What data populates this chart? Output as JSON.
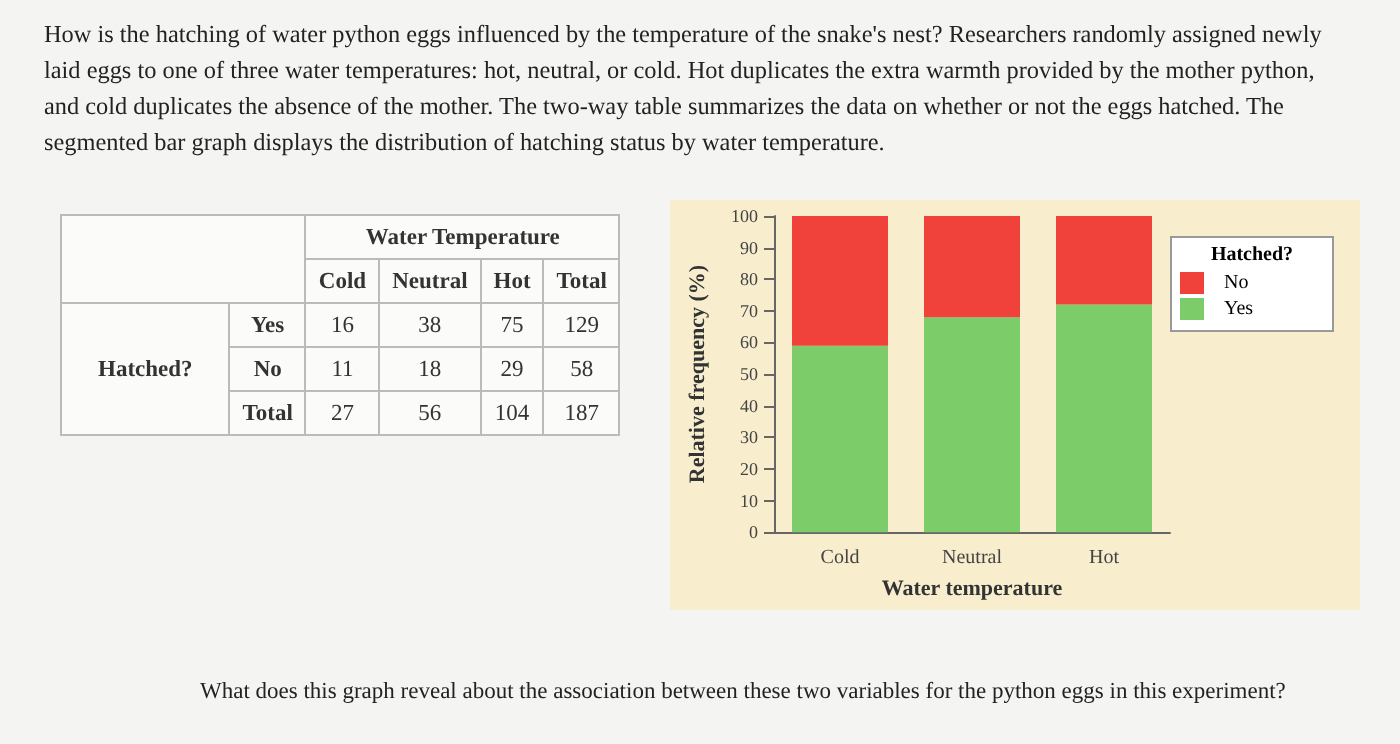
{
  "chart_data": [
    {
      "type": "other",
      "title": "How is the hatching of water python eggs influenced by the temperature of the snake's nest? Researchers randomly assigned newly laid eggs to one of three water temperatures: hot, neutral, or cold. Hot duplicates the extra warmth provided by the mother python, and cold duplicates the absence of the mother. The two-way table summarizes the data on whether or not the eggs hatched. The segmented bar graph displays the distribution of hatching status by water temperature.",
      "annotations": [
        "Water Temperature",
        "Cold",
        "Neutral",
        "Hot",
        "Total",
        "Hatched?",
        "Yes",
        "16",
        "38",
        "75",
        "129",
        "No",
        "11",
        "18",
        "29",
        "58",
        "Total",
        "27",
        "56",
        "104",
        "187",
        "What does this graph reveal about the association between these two variables for the python eggs in this experiment?"
      ]
    },
    {
      "type": "bar",
      "stacked": true,
      "categories": [
        "Cold",
        "Neutral",
        "Hot"
      ],
      "xlabel": "Water temperature",
      "ylabel": "Relative frequency (%)",
      "legend_title": "Hatched?",
      "legend": "top right",
      "series": [
        {
          "name": "Yes",
          "color": "#7ccd6a",
          "values": [
            59,
            68,
            72
          ]
        },
        {
          "name": "No",
          "color": "#f0423a",
          "values": [
            41,
            32,
            28
          ]
        }
      ],
      "ylim": [
        0,
        100
      ],
      "yticks": [
        0,
        10,
        20,
        30,
        40,
        50,
        60,
        70,
        80,
        90,
        100
      ],
      "grid": false
    }
  ]
}
